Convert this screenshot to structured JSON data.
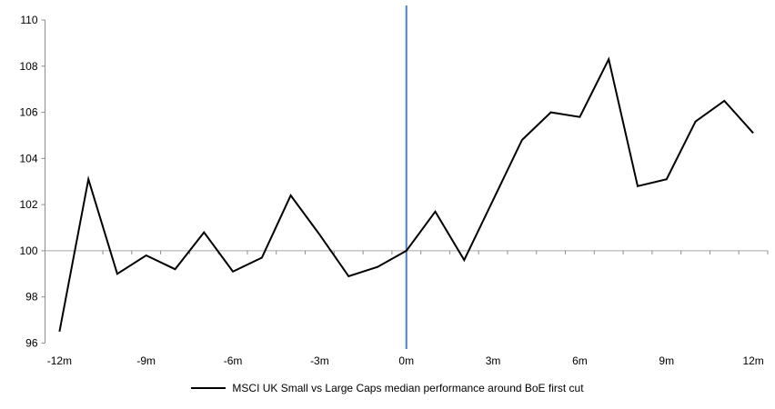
{
  "chart": {
    "legend": {
      "label": "MSCI UK Small vs Large Caps median performance around BoE first cut"
    }
  },
  "chart_data": {
    "type": "line",
    "title": "",
    "xlabel": "",
    "ylabel": "",
    "x": [
      -12,
      -11,
      -10,
      -9,
      -8,
      -7,
      -6,
      -5,
      -4,
      -3,
      -2,
      -1,
      0,
      1,
      2,
      3,
      4,
      5,
      6,
      7,
      8,
      9,
      10,
      11,
      12
    ],
    "series": [
      {
        "name": "MSCI UK Small vs Large Caps median performance around BoE first cut",
        "color": "#000000",
        "values": [
          96.5,
          103.1,
          99.0,
          99.8,
          99.2,
          100.8,
          99.1,
          99.7,
          102.4,
          100.7,
          98.9,
          99.3,
          100.0,
          101.7,
          99.6,
          102.2,
          104.8,
          106.0,
          105.8,
          108.3,
          102.8,
          103.1,
          105.6,
          106.5,
          105.1
        ]
      }
    ],
    "ylim": [
      96,
      110
    ],
    "ytick_step": 2,
    "y_tick_labels": [
      "96",
      "98",
      "100",
      "102",
      "104",
      "106",
      "108",
      "110"
    ],
    "x_ticks": [
      {
        "month": -12,
        "label": "-12m"
      },
      {
        "month": -9,
        "label": "-9m"
      },
      {
        "month": -6,
        "label": "-6m"
      },
      {
        "month": -3,
        "label": "-3m"
      },
      {
        "month": 0,
        "label": "0m"
      },
      {
        "month": 3,
        "label": "3m"
      },
      {
        "month": 6,
        "label": "6m"
      },
      {
        "month": 9,
        "label": "9m"
      },
      {
        "month": 12,
        "label": "12m"
      }
    ],
    "reference_lines": {
      "horizontal_y": 100,
      "horizontal_color": "#a6a6a6",
      "vertical_x_month": 0,
      "vertical_color": "#4f81bd"
    },
    "axis_color": "#8c8c8c",
    "grid": false,
    "legend_position": "bottom"
  }
}
